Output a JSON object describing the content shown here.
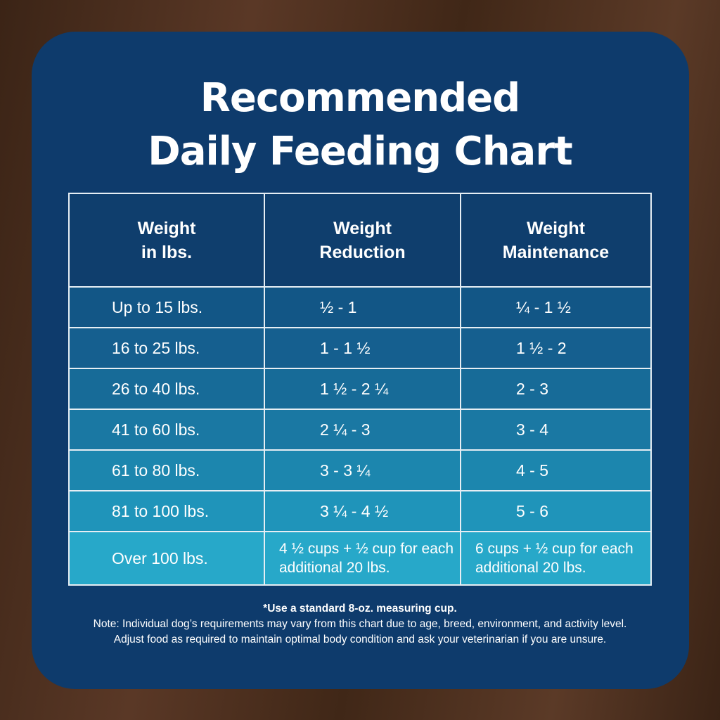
{
  "colors": {
    "panel": "#0e3b6c",
    "header": "#0f3e6d",
    "rows": [
      "#125686",
      "#155f8f",
      "#176b98",
      "#1a78a3",
      "#1c86ae",
      "#1f94ba",
      "#27a8c9"
    ]
  },
  "title": {
    "line1": "Recommended",
    "line2": "Daily Feeding Chart"
  },
  "chart_data": {
    "type": "table",
    "columns": [
      {
        "line1": "Weight",
        "line2": "in lbs."
      },
      {
        "line1": "Weight",
        "line2": "Reduction"
      },
      {
        "line1": "Weight",
        "line2": "Maintenance"
      }
    ],
    "rows": [
      [
        "Up to 15 lbs.",
        "½ - 1",
        "¼ - 1 ½"
      ],
      [
        "16 to 25 lbs.",
        "1 - 1 ½",
        "1 ½ - 2"
      ],
      [
        "26 to 40 lbs.",
        "1 ½ - 2 ¼",
        "2 - 3"
      ],
      [
        "41 to 60 lbs.",
        "2 ¼ - 3",
        "3 - 4"
      ],
      [
        "61 to 80 lbs.",
        "3 - 3 ¼",
        "4 - 5"
      ],
      [
        "81 to 100 lbs.",
        "3 ¼ - 4 ½",
        "5 - 6"
      ],
      [
        "Over 100 lbs.",
        "4 ½ cups  + ½ cup for each additional 20 lbs.",
        "6 cups  + ½ cup for each additional 20 lbs."
      ]
    ]
  },
  "footnote": {
    "cup": "*Use a standard 8-oz. measuring cup.",
    "note1": "Note: Individual dog’s requirements may vary from this chart due to age, breed, environment, and activity level.",
    "note2": "Adjust food as required to maintain optimal body condition and ask your veterinarian if you are unsure."
  }
}
